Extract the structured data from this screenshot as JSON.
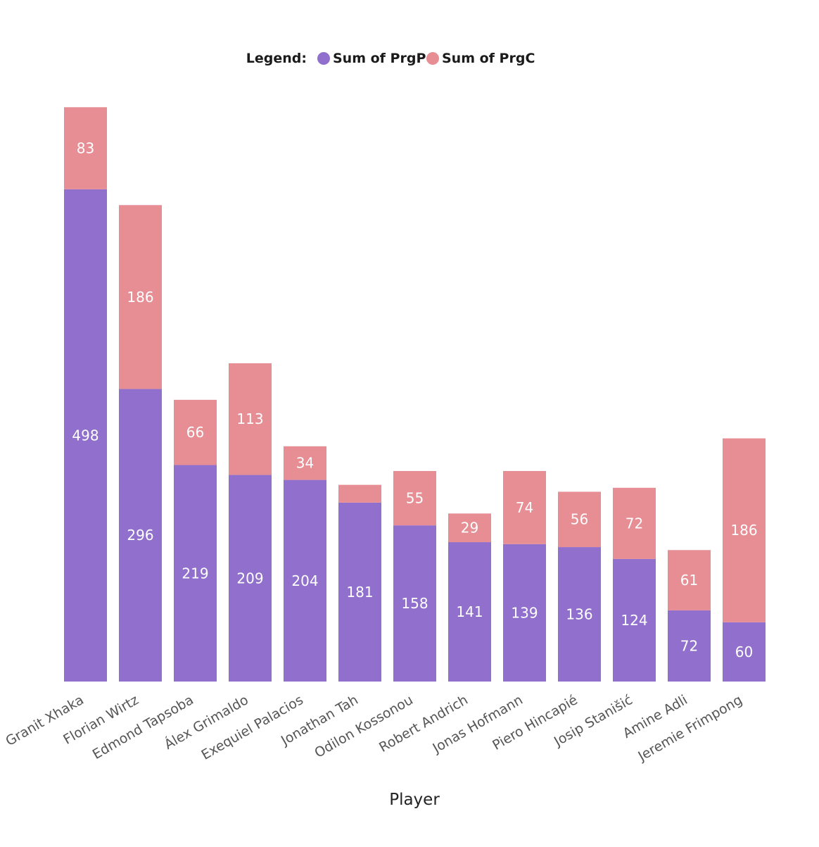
{
  "chart_data": {
    "type": "bar",
    "stacked": true,
    "legend": {
      "title": "Legend:",
      "position": "top-center"
    },
    "xlabel": "Player",
    "ylabel": "",
    "ylim": [
      0,
      600
    ],
    "grid": false,
    "categories": [
      "Granit Xhaka",
      "Florian Wirtz",
      "Edmond Tapsoba",
      "Álex Grimaldo",
      "Exequiel Palacios",
      "Jonathan Tah",
      "Odilon Kossonou",
      "Robert Andrich",
      "Jonas Hofmann",
      "Piero Hincapié",
      "Josip Stanišić",
      "Amine Adli",
      "Jeremie Frimpong"
    ],
    "series": [
      {
        "name": "Sum of PrgP",
        "color": "#9070CC",
        "values": [
          498,
          296,
          219,
          209,
          204,
          181,
          158,
          141,
          139,
          136,
          124,
          72,
          60
        ],
        "labels": [
          "498",
          "296",
          "219",
          "209",
          "204",
          "181",
          "158",
          "141",
          "139",
          "136",
          "124",
          "72",
          "60"
        ]
      },
      {
        "name": "Sum of PrgC",
        "color": "#E68E94",
        "values": [
          83,
          186,
          66,
          113,
          34,
          18,
          55,
          29,
          74,
          56,
          72,
          61,
          186
        ],
        "labels": [
          "83",
          "186",
          "66",
          "113",
          "34",
          "",
          "55",
          "29",
          "74",
          "56",
          "72",
          "61",
          "186"
        ]
      }
    ]
  }
}
